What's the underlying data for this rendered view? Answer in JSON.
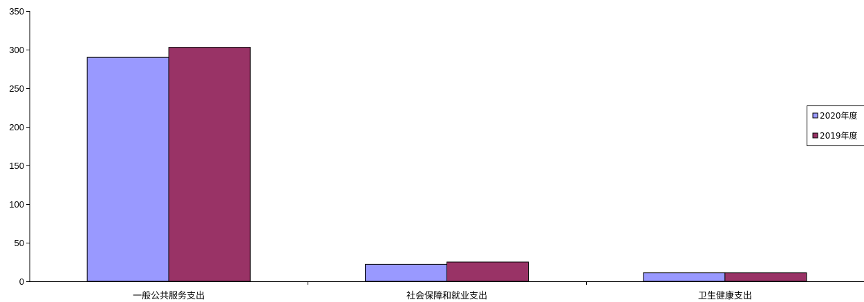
{
  "chart_data": {
    "type": "bar",
    "title": "",
    "xlabel": "",
    "ylabel": "",
    "categories": [
      "一般公共服务支出",
      "社会保障和就业支出",
      "卫生健康支出"
    ],
    "series": [
      {
        "name": "2020年度",
        "color": "#9999ff",
        "values": [
          290,
          22,
          11
        ]
      },
      {
        "name": "2019年度",
        "color": "#993366",
        "values": [
          303,
          25,
          11
        ]
      }
    ],
    "ylim": [
      0,
      350
    ],
    "yticks": [
      0,
      50,
      100,
      150,
      200,
      250,
      300,
      350
    ],
    "grid": false,
    "legend": "right"
  }
}
